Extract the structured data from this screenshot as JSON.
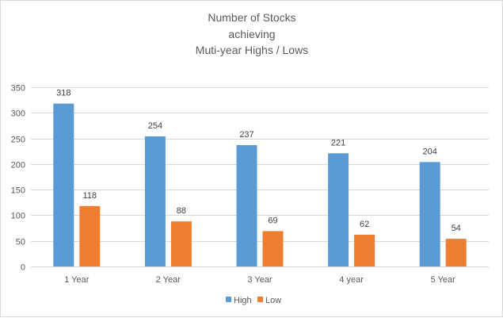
{
  "chart_data": {
    "type": "bar",
    "title": [
      "Number of Stocks",
      "achieving",
      "Muti-year Highs / Lows"
    ],
    "categories": [
      "1 Year",
      "2 Year",
      "3 Year",
      "4 year",
      "5 Year"
    ],
    "series": [
      {
        "name": "High",
        "color": "#5b9bd5",
        "values": [
          318,
          254,
          237,
          221,
          204
        ]
      },
      {
        "name": "Low",
        "color": "#ed7d31",
        "values": [
          118,
          88,
          69,
          62,
          54
        ]
      }
    ],
    "ylim": [
      0,
      350
    ],
    "yticks": [
      "0",
      "50",
      "100",
      "150",
      "200",
      "250",
      "300",
      "350"
    ],
    "ytick_values": [
      0,
      50,
      100,
      150,
      200,
      250,
      300,
      350
    ],
    "grid": true,
    "legend_position": "bottom",
    "gridline_color": "#d9d9d9"
  }
}
